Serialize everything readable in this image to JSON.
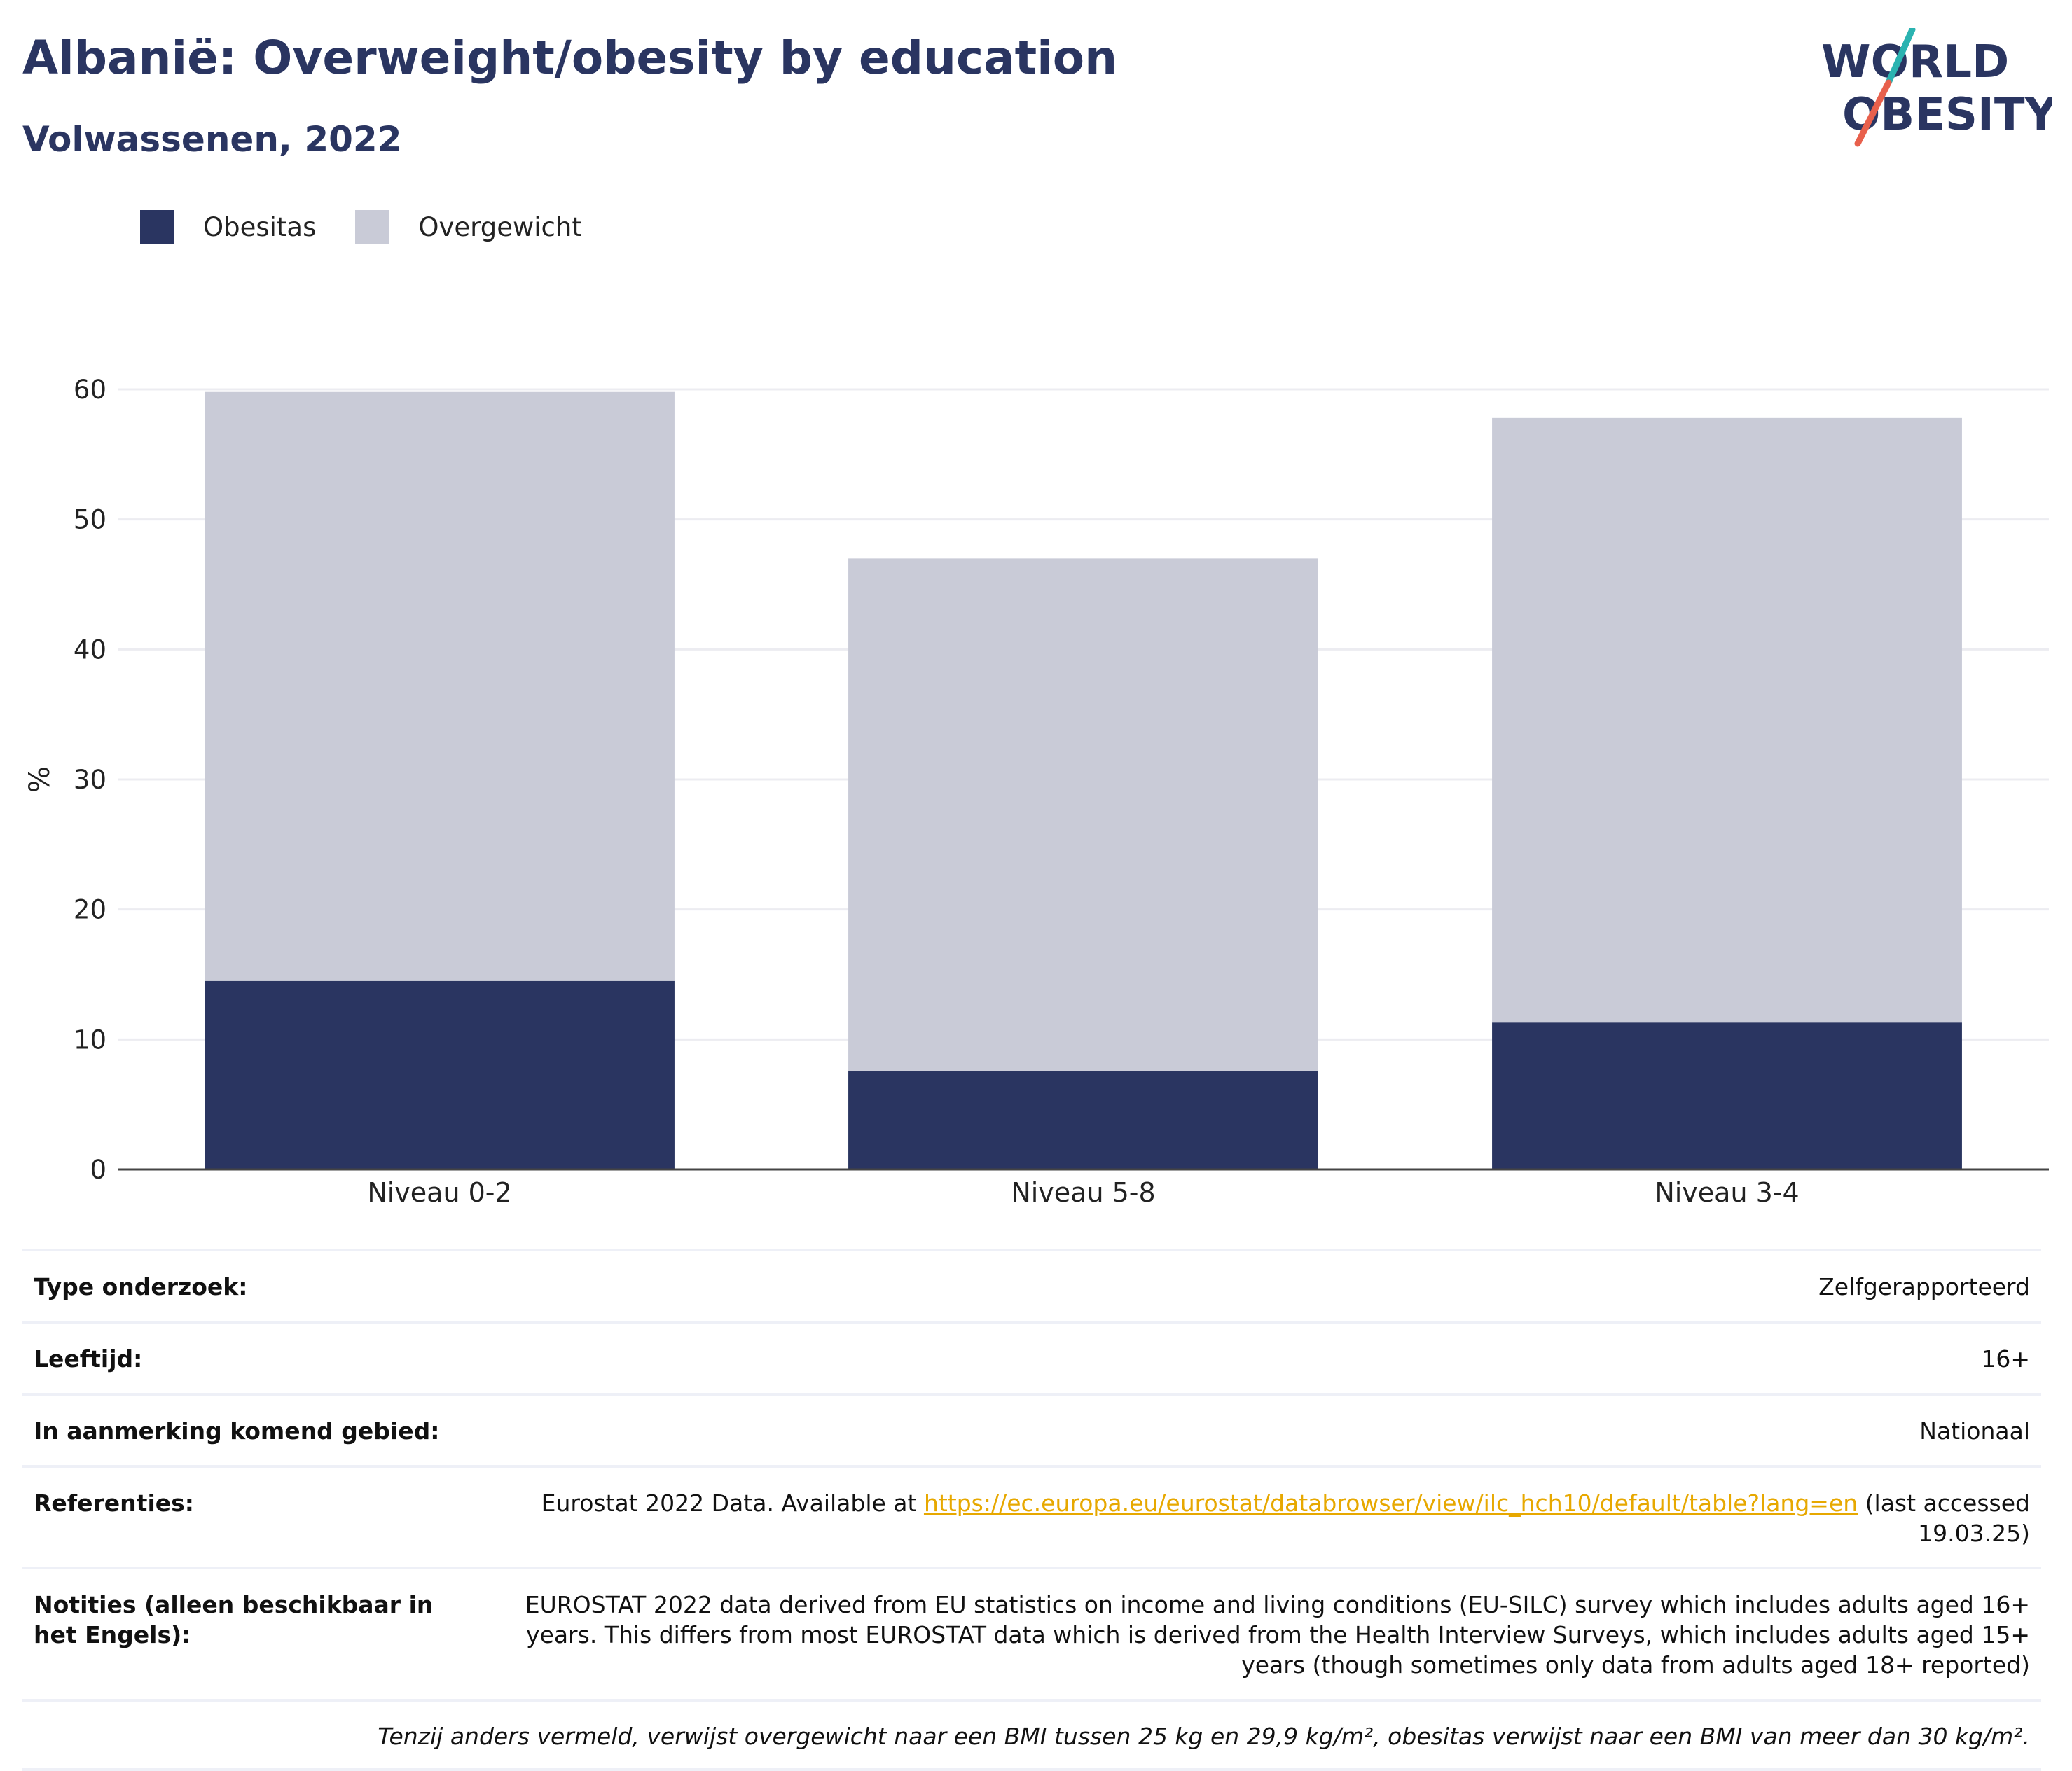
{
  "header": {
    "title": "Albanië: Overweight/obesity by education",
    "subtitle": "Volwassenen, 2022"
  },
  "logo": {
    "line1": "WORLD",
    "line2": "OBESITY",
    "colors": {
      "text": "#2a3561",
      "slash_teal": "#2bb3b1",
      "slash_coral": "#e8604c"
    }
  },
  "legend": [
    {
      "label": "Obesitas",
      "color": "#2a3561"
    },
    {
      "label": "Overgewicht",
      "color": "#c9cbd7"
    }
  ],
  "chart_data": {
    "type": "bar",
    "stacked": true,
    "categories": [
      "Niveau 0-2",
      "Niveau 5-8",
      "Niveau 3-4"
    ],
    "series": [
      {
        "name": "Obesitas",
        "values": [
          14.5,
          7.6,
          11.3
        ],
        "color": "#2a3561"
      },
      {
        "name": "Overgewicht",
        "values": [
          45.3,
          39.4,
          46.5
        ],
        "color": "#c9cbd7"
      }
    ],
    "totals": [
      59.8,
      47.0,
      57.8
    ],
    "ylabel": "%",
    "ylim": [
      0,
      60
    ],
    "yticks": [
      0,
      10,
      20,
      30,
      40,
      50,
      60
    ],
    "grid": true
  },
  "meta": {
    "rows": [
      {
        "key": "Type onderzoek:",
        "value": "Zelfgerapporteerd"
      },
      {
        "key": "Leeftijd:",
        "value": "16+"
      },
      {
        "key": "In aanmerking komend gebied:",
        "value": "Nationaal"
      }
    ],
    "references": {
      "key": "Referenties:",
      "prefix": "Eurostat 2022 Data. Available at ",
      "link": "https://ec.europa.eu/eurostat/databrowser/view/ilc_hch10/default/table?lang=en",
      "suffix": " (last accessed 19.03.25)"
    },
    "notes": {
      "key": "Notities (alleen beschikbaar in het Engels):",
      "value": "EUROSTAT 2022 data derived from EU statistics on income and living conditions (EU-SILC) survey which includes adults aged 16+ years. This differs from most EUROSTAT data which is derived from the Health Interview Surveys, which includes adults aged 15+ years (though sometimes only data from adults aged 18+ reported)"
    },
    "footnote": "Tenzij anders vermeld, verwijst overgewicht naar een BMI tussen 25 kg en 29,9 kg/m², obesitas verwijst naar een BMI van meer dan 30 kg/m²."
  }
}
